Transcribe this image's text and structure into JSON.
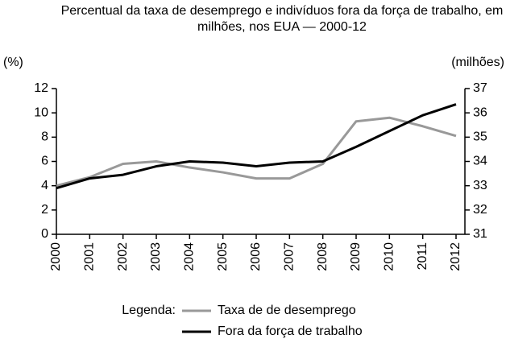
{
  "chart_data": {
    "type": "line",
    "title": "Percentual da taxa de desemprego e indivíduos fora da força de trabalho, em milhões, nos EUA — 2000-12",
    "ylabel": "(%)",
    "y2label": "(milhões)",
    "legend_title": "Legenda:",
    "categories": [
      "2000",
      "2001",
      "2002",
      "2003",
      "2004",
      "2005",
      "2006",
      "2007",
      "2008",
      "2009",
      "2010",
      "2011",
      "2012"
    ],
    "ylim": [
      0,
      12
    ],
    "yticks": [
      0,
      2,
      4,
      6,
      8,
      10,
      12
    ],
    "y2lim": [
      31,
      37
    ],
    "y2ticks": [
      31,
      32,
      33,
      34,
      35,
      36,
      37
    ],
    "series": [
      {
        "name": "Taxa de de desemprego",
        "color": "#999999",
        "values": [
          4.0,
          4.7,
          5.8,
          6.0,
          5.5,
          5.1,
          4.6,
          4.6,
          5.8,
          9.3,
          9.6,
          8.9,
          8.1
        ]
      },
      {
        "name": "Fora da força de trabalho",
        "color": "#000000",
        "axis": "y2",
        "values": [
          32.9,
          33.3,
          33.45,
          33.8,
          34.0,
          33.95,
          33.8,
          33.95,
          34.0,
          34.6,
          35.25,
          35.9,
          36.35
        ]
      }
    ]
  }
}
